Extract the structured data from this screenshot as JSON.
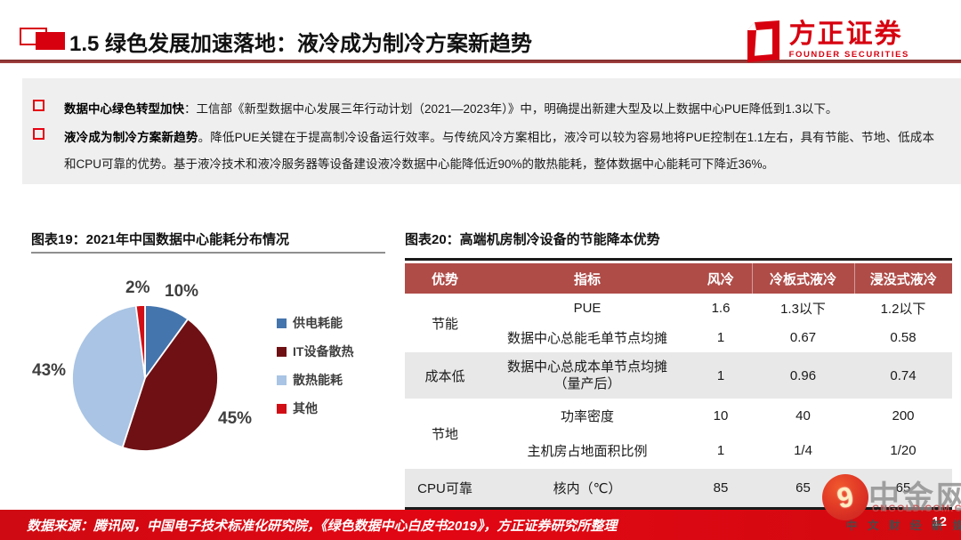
{
  "header": {
    "title": "1.5 绿色发展加速落地：液冷成为制冷方案新趋势",
    "logo_text": "方正证券",
    "logo_subtext": "FOUNDER SECURITIES"
  },
  "summary": {
    "bullets": [
      {
        "lead": "数据中心绿色转型加快",
        "rest": "：工信部《新型数据中心发展三年行动计划（2021—2023年）》中，明确提出新建大型及以上数据中心PUE降低到1.3以下。"
      },
      {
        "lead": "液冷成为制冷方案新趋势",
        "rest": "。降低PUE关键在于提高制冷设备运行效率。与传统风冷方案相比，液冷可以较为容易地将PUE控制在1.1左右，具有节能、节地、低成本和CPU可靠的优势。基于液冷技术和液冷服务器等设备建设液冷数据中心能降低近90%的散热能耗，整体数据中心能耗可下降近36%。"
      }
    ]
  },
  "figure19": {
    "title": "图表19：2021年中国数据中心能耗分布情况"
  },
  "figure20": {
    "title": "图表20：高端机房制冷设备的节能降本优势"
  },
  "chart_data": [
    {
      "type": "pie",
      "title": "2021年中国数据中心能耗分布情况",
      "categories": [
        "供电耗能",
        "IT设备散热",
        "散热能耗",
        "其他"
      ],
      "values": [
        10,
        45,
        43,
        2
      ],
      "labels": [
        "10%",
        "45%",
        "43%",
        "2%"
      ],
      "colors": [
        "#4575AD",
        "#6E1014",
        "#A9C4E4",
        "#D10E15"
      ],
      "start_angle_deg": -90,
      "direction": "clockwise",
      "legend_position": "right"
    },
    {
      "type": "table",
      "title": "高端机房制冷设备的节能降本优势",
      "columns": [
        "优势",
        "指标",
        "风冷",
        "冷板式液冷",
        "浸没式液冷"
      ],
      "groups": [
        {
          "advantage": "节能",
          "rows": [
            {
              "indicator": "PUE",
              "air": "1.6",
              "cold_plate": "1.3以下",
              "immersion": "1.2以下"
            },
            {
              "indicator": "数据中心总能毛单节点均摊",
              "air": "1",
              "cold_plate": "0.67",
              "immersion": "0.58"
            }
          ]
        },
        {
          "advantage": "成本低",
          "rows": [
            {
              "indicator": "数据中心总成本单节点均摊",
              "indicator_line2": "（量产后）",
              "air": "1",
              "cold_plate": "0.96",
              "immersion": "0.74"
            }
          ]
        },
        {
          "advantage": "节地",
          "rows": [
            {
              "indicator": "功率密度",
              "air": "10",
              "cold_plate": "40",
              "immersion": "200"
            },
            {
              "indicator": "主机房占地面积比例",
              "air": "1",
              "cold_plate": "1/4",
              "immersion": "1/20"
            }
          ]
        },
        {
          "advantage": "CPU可靠",
          "rows": [
            {
              "indicator": "核内（℃）",
              "air": "85",
              "cold_plate": "65",
              "immersion": "65"
            }
          ]
        }
      ]
    }
  ],
  "footer": {
    "source": "数据来源：腾讯网，中国电子技术标准化研究院，《绿色数据中心白皮书2019》，方正证券研究所整理",
    "page_number": "12"
  },
  "watermark": {
    "name": "中金网",
    "logo_glyph": "9",
    "domain": "CNGOLD.COM.CN",
    "tagline": "中 文 财 经 新 媒 体"
  },
  "colors": {
    "accent_red": "#D7000F",
    "bullet_red": "#E60012",
    "header_divider": "#9E3A38",
    "panel_grey": "#EFEFEF",
    "table_header_bg": "#AF4C48",
    "table_zebra_grey": "#E8E8E8",
    "footer_red": "#E20613",
    "pie_label_grey": "#3F3F3F"
  }
}
